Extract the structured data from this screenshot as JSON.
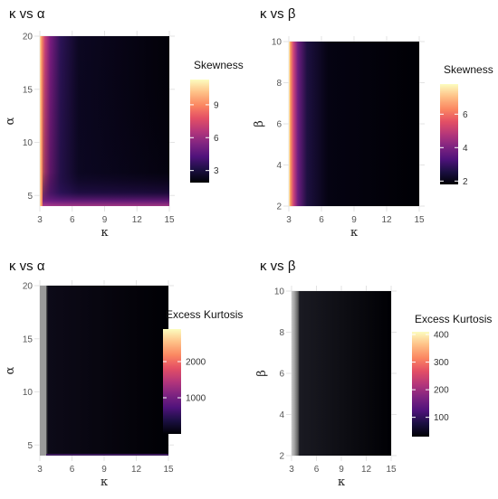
{
  "chart_data": [
    {
      "type": "heatmap",
      "title": "κ vs α",
      "xlabel": "κ",
      "ylabel": "α",
      "xlim": [
        3,
        15
      ],
      "ylim": [
        4,
        20
      ],
      "x_ticks": [
        3,
        6,
        9,
        12,
        15
      ],
      "y_ticks": [
        5,
        10,
        15,
        20
      ],
      "legend": {
        "title": "Skewness",
        "ticks": [
          3,
          6,
          9
        ],
        "range": [
          1.9,
          11.3
        ],
        "placement": "right"
      },
      "grid": true
    },
    {
      "type": "heatmap",
      "title": "κ vs β",
      "xlabel": "κ",
      "ylabel": "β",
      "xlim": [
        3,
        15
      ],
      "ylim": [
        2,
        10
      ],
      "x_ticks": [
        3,
        6,
        9,
        12,
        15
      ],
      "y_ticks": [
        2,
        4,
        6,
        8,
        10
      ],
      "legend": {
        "title": "Skewness",
        "ticks": [
          2,
          4,
          6
        ],
        "range": [
          1.8,
          7.8
        ],
        "placement": "right"
      },
      "grid": true
    },
    {
      "type": "heatmap",
      "title": "κ vs α",
      "xlabel": "κ",
      "ylabel": "α",
      "xlim": [
        3,
        15
      ],
      "ylim": [
        4,
        20
      ],
      "x_ticks": [
        3,
        6,
        9,
        12,
        15
      ],
      "y_ticks": [
        5,
        10,
        15,
        20
      ],
      "legend": {
        "title": "Excess Kurtosis",
        "ticks": [
          1000,
          2000
        ],
        "range": [
          0,
          2900
        ],
        "placement": "right"
      },
      "grid": true
    },
    {
      "type": "heatmap",
      "title": "κ vs β",
      "xlabel": "κ",
      "ylabel": "β",
      "xlim": [
        3,
        15
      ],
      "ylim": [
        2,
        10
      ],
      "x_ticks": [
        3,
        6,
        9,
        12,
        15
      ],
      "y_ticks": [
        2,
        4,
        6,
        8,
        10
      ],
      "legend": {
        "title": "Excess Kurtosis",
        "ticks": [
          100,
          200,
          300,
          400
        ],
        "range": [
          30,
          410
        ],
        "placement": "right"
      },
      "grid": true
    }
  ]
}
